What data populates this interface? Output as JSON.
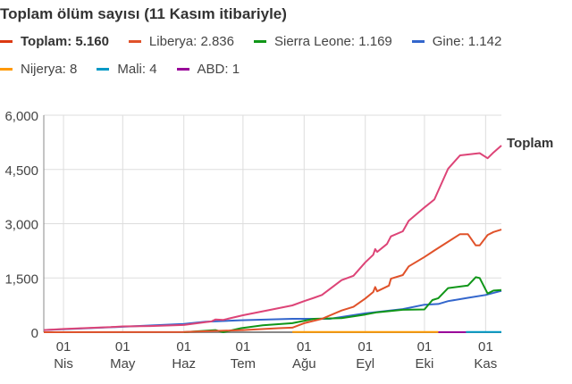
{
  "chart_data": {
    "type": "line",
    "title": "Toplam ölüm sayısı (11 Kasım itibariyle)",
    "xlabel": "",
    "ylabel": "",
    "x_units": "day of year 2014",
    "xlim": [
      81,
      313
    ],
    "ylim": [
      0,
      6000
    ],
    "yticks": [
      0,
      1500,
      3000,
      4500,
      6000
    ],
    "ytick_labels": [
      "0",
      "1,500",
      "3,000",
      "4,500",
      "6,000"
    ],
    "xticks": [
      {
        "x": 91,
        "day": "01",
        "month": "Nis"
      },
      {
        "x": 121,
        "day": "01",
        "month": "May"
      },
      {
        "x": 152,
        "day": "01",
        "month": "Haz"
      },
      {
        "x": 182,
        "day": "01",
        "month": "Tem"
      },
      {
        "x": 213,
        "day": "01",
        "month": "Ağu"
      },
      {
        "x": 244,
        "day": "01",
        "month": "Eyl"
      },
      {
        "x": 274,
        "day": "01",
        "month": "Eki"
      },
      {
        "x": 305,
        "day": "01",
        "month": "Kas"
      }
    ],
    "grid": true,
    "end_label": "Toplam",
    "legend": [
      {
        "label": "Toplam: 5.160",
        "color": "#dc3912",
        "bold": true
      },
      {
        "label": "Liberya: 2.836",
        "color": "#e0522a"
      },
      {
        "label": "Sierra Leone: 1.169",
        "color": "#109618"
      },
      {
        "label": "Gine: 1.142",
        "color": "#3366cc"
      },
      {
        "label": "Nijerya: 8",
        "color": "#ff9900"
      },
      {
        "label": "Mali: 4",
        "color": "#0099c6"
      },
      {
        "label": "ABD: 1",
        "color": "#990099"
      }
    ],
    "series": [
      {
        "name": "Toplam",
        "color": "#dd4477",
        "x": [
          81,
          91,
          105,
          115,
          121,
          135,
          152,
          166,
          168,
          172,
          182,
          196,
          207,
          213,
          218,
          222,
          232,
          238,
          244,
          248,
          249,
          250,
          255,
          257,
          263,
          266,
          274,
          279,
          286,
          292,
          299,
          302,
          306,
          309,
          313
        ],
        "y": [
          60,
          90,
          120,
          140,
          160,
          170,
          200,
          300,
          350,
          340,
          470,
          620,
          740,
          860,
          950,
          1030,
          1440,
          1560,
          1930,
          2140,
          2300,
          2220,
          2440,
          2650,
          2790,
          3080,
          3450,
          3670,
          4520,
          4890,
          4930,
          4950,
          4810,
          4970,
          5160
        ]
      },
      {
        "name": "Liberya",
        "color": "#e0522a",
        "x": [
          81,
          152,
          182,
          200,
          207,
          213,
          222,
          232,
          238,
          244,
          248,
          249,
          250,
          256,
          257,
          263,
          266,
          274,
          279,
          292,
          296,
          300,
          302,
          306,
          309,
          313
        ],
        "y": [
          0,
          5,
          60,
          110,
          125,
          250,
          370,
          600,
          700,
          930,
          1110,
          1250,
          1130,
          1290,
          1480,
          1580,
          1820,
          2080,
          2260,
          2710,
          2710,
          2400,
          2400,
          2690,
          2770,
          2836
        ]
      },
      {
        "name": "Sierra Leone",
        "color": "#109618",
        "x": [
          152,
          168,
          172,
          181,
          192,
          207,
          218,
          232,
          244,
          250,
          263,
          274,
          278,
          281,
          286,
          296,
          300,
          302,
          306,
          309,
          313
        ],
        "y": [
          0,
          60,
          0,
          110,
          190,
          250,
          370,
          390,
          490,
          550,
          620,
          630,
          890,
          940,
          1220,
          1290,
          1520,
          1500,
          1070,
          1150,
          1169
        ]
      },
      {
        "name": "Gine",
        "color": "#3366cc",
        "x": [
          81,
          121,
          152,
          163,
          181,
          207,
          226,
          244,
          263,
          274,
          281,
          286,
          296,
          305,
          313
        ],
        "y": [
          60,
          150,
          230,
          290,
          330,
          370,
          370,
          520,
          640,
          760,
          780,
          860,
          950,
          1030,
          1142
        ]
      },
      {
        "name": "Nijerya",
        "color": "#ff9900",
        "x": [
          207,
          281
        ],
        "y": [
          8,
          8
        ]
      },
      {
        "name": "ABD",
        "color": "#990099",
        "x": [
          281,
          295
        ],
        "y": [
          1,
          1
        ]
      },
      {
        "name": "Mali",
        "color": "#0099c6",
        "x": [
          295,
          313
        ],
        "y": [
          4,
          4
        ]
      }
    ]
  }
}
